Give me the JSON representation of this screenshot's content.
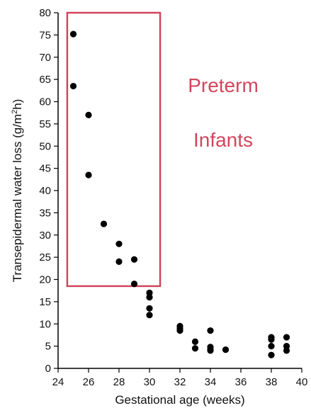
{
  "chart_data": {
    "type": "scatter",
    "title": "",
    "xlabel": "Gestational age (weeks)",
    "ylabel_main": "Transepidermal water loss (g/m",
    "ylabel_sup": "2",
    "ylabel_end": "h)",
    "xlim": [
      24,
      40
    ],
    "ylim": [
      0,
      80
    ],
    "xticks": [
      "24",
      "26",
      "28",
      "30",
      "32",
      "34",
      "36",
      "38",
      "40"
    ],
    "yticks": [
      "0",
      "5",
      "10",
      "15",
      "20",
      "25",
      "30",
      "35",
      "40",
      "45",
      "50",
      "55",
      "60",
      "65",
      "70",
      "75",
      "80"
    ],
    "grid": false,
    "legend": "none",
    "points": [
      {
        "x": 25,
        "y": 75.2
      },
      {
        "x": 25,
        "y": 63.5
      },
      {
        "x": 26,
        "y": 57
      },
      {
        "x": 26,
        "y": 43.5
      },
      {
        "x": 27,
        "y": 32.5
      },
      {
        "x": 28,
        "y": 28
      },
      {
        "x": 28,
        "y": 24
      },
      {
        "x": 29,
        "y": 24.5
      },
      {
        "x": 29,
        "y": 19
      },
      {
        "x": 30,
        "y": 17
      },
      {
        "x": 30,
        "y": 16
      },
      {
        "x": 30,
        "y": 13.5
      },
      {
        "x": 30,
        "y": 12
      },
      {
        "x": 32,
        "y": 9.5
      },
      {
        "x": 32,
        "y": 9
      },
      {
        "x": 32,
        "y": 8.5
      },
      {
        "x": 33,
        "y": 6
      },
      {
        "x": 33,
        "y": 4.5
      },
      {
        "x": 34,
        "y": 8.5
      },
      {
        "x": 34,
        "y": 4.8
      },
      {
        "x": 34,
        "y": 4.3
      },
      {
        "x": 34,
        "y": 4
      },
      {
        "x": 35,
        "y": 4.2
      },
      {
        "x": 38,
        "y": 7
      },
      {
        "x": 38,
        "y": 6.5
      },
      {
        "x": 38,
        "y": 5
      },
      {
        "x": 38,
        "y": 3
      },
      {
        "x": 39,
        "y": 7
      },
      {
        "x": 39,
        "y": 5
      },
      {
        "x": 39,
        "y": 4
      }
    ],
    "annotation": {
      "line1": "Preterm",
      "line2": "Infants",
      "color": "#d2455c",
      "box_x": [
        24.6,
        30.7
      ],
      "box_y": [
        18.5,
        80
      ]
    },
    "marker_color": "#000000"
  }
}
